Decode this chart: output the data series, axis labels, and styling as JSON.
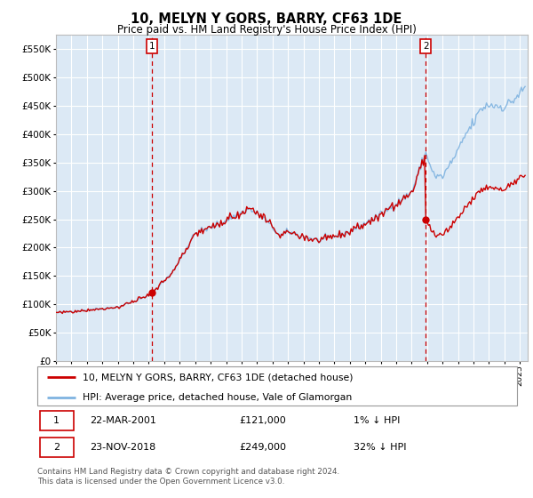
{
  "title": "10, MELYN Y GORS, BARRY, CF63 1DE",
  "subtitle": "Price paid vs. HM Land Registry's House Price Index (HPI)",
  "ylim": [
    0,
    575000
  ],
  "yticks": [
    0,
    50000,
    100000,
    150000,
    200000,
    250000,
    300000,
    350000,
    400000,
    450000,
    500000,
    550000
  ],
  "ytick_labels": [
    "£0",
    "£50K",
    "£100K",
    "£150K",
    "£200K",
    "£250K",
    "£300K",
    "£350K",
    "£400K",
    "£450K",
    "£500K",
    "£550K"
  ],
  "xlim_start": 1995.0,
  "xlim_end": 2025.5,
  "plot_bg_color": "#dce9f5",
  "fig_bg_color": "#ffffff",
  "grid_color": "#ffffff",
  "hpi_color": "#7fb3e0",
  "price_color": "#cc0000",
  "marker1_date": 2001.22,
  "marker1_price": 121000,
  "marker1_label": "22-MAR-2001",
  "marker1_value_label": "£121,000",
  "marker1_note": "1% ↓ HPI",
  "marker2_date": 2018.9,
  "marker2_price": 249000,
  "marker2_label": "23-NOV-2018",
  "marker2_value_label": "£249,000",
  "marker2_note": "32% ↓ HPI",
  "legend_line1": "10, MELYN Y GORS, BARRY, CF63 1DE (detached house)",
  "legend_line2": "HPI: Average price, detached house, Vale of Glamorgan",
  "footnote": "Contains HM Land Registry data © Crown copyright and database right 2024.\nThis data is licensed under the Open Government Licence v3.0."
}
